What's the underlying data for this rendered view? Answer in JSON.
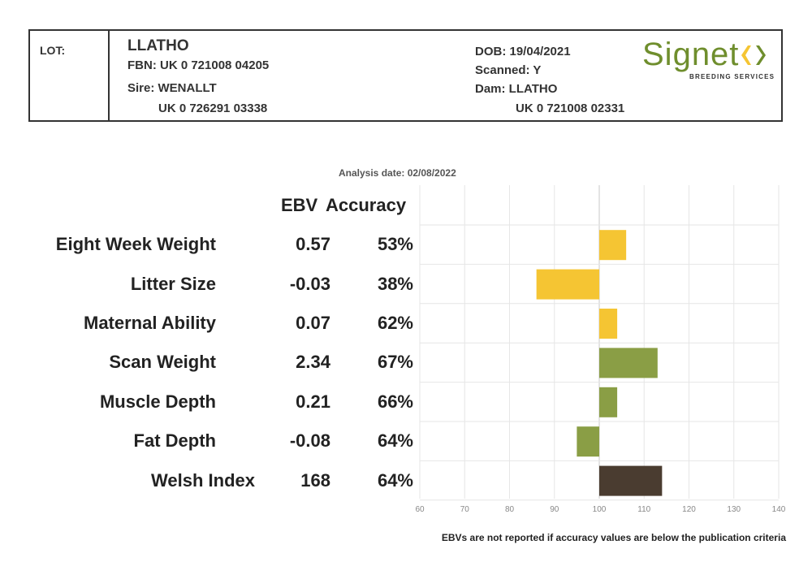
{
  "header": {
    "lot_label": "LOT:",
    "name": "LLATHO",
    "fbn": "FBN: UK 0 721008 04205",
    "sire": "Sire: WENALLT",
    "sire_id": "UK 0 726291 03338",
    "dob": "DOB: 19/04/2021",
    "scanned": "Scanned: Y",
    "dam": "Dam: LLATHO",
    "dam_id": "UK 0 721008 02331"
  },
  "logo": {
    "word": "Signet",
    "tagline": "BREEDING SERVICES",
    "color": "#6f8e2d"
  },
  "analysis_date": "Analysis date: 02/08/2022",
  "table_headers": {
    "ebv": "EBV",
    "accuracy": "Accuracy"
  },
  "footnote": "EBVs are not reported if accuracy values are below the publication criteria",
  "chart_data": {
    "type": "bar",
    "orientation": "horizontal",
    "categories": [
      "Eight Week Weight",
      "Litter Size",
      "Maternal Ability",
      "Scan Weight",
      "Muscle Depth",
      "Fat Depth",
      "Welsh Index"
    ],
    "ebv": [
      "0.57",
      "-0.03",
      "0.07",
      "2.34",
      "0.21",
      "-0.08",
      "168"
    ],
    "accuracy": [
      "53%",
      "38%",
      "62%",
      "67%",
      "66%",
      "64%",
      "64%"
    ],
    "values": [
      106,
      86,
      104,
      113,
      104,
      95,
      114
    ],
    "bar_colors": [
      "#f5c533",
      "#f5c533",
      "#f5c533",
      "#8a9e45",
      "#8a9e45",
      "#8a9e45",
      "#4a3c30"
    ],
    "baseline": 100,
    "xlim": [
      60,
      140
    ],
    "xticks": [
      60,
      70,
      80,
      90,
      100,
      110,
      120,
      130,
      140
    ],
    "grid": true,
    "legend": "none"
  }
}
